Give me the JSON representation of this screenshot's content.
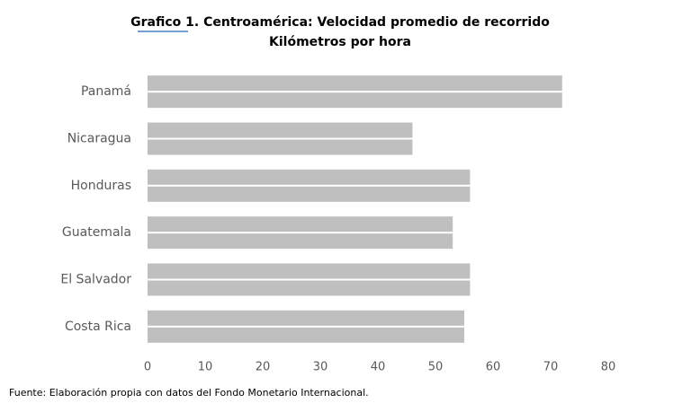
{
  "chart_data": {
    "type": "hbar",
    "title": "Grafico 1. Centroamérica: Velocidad promedio de recorrido",
    "subtitle": "Kilómetros por hora",
    "categories": [
      "Panamá",
      "Nicaragua",
      "Honduras",
      "Guatemala",
      "El Salvador",
      "Costa Rica"
    ],
    "series": [
      {
        "color": "#bfbfbf",
        "values": [
          72,
          46,
          56,
          53,
          56,
          55
        ]
      },
      {
        "color": "#bfbfbf",
        "values": [
          72,
          46,
          56,
          53,
          56,
          55
        ]
      }
    ],
    "xlim": [
      0,
      80
    ],
    "xticks": [
      0,
      10,
      20,
      30,
      40,
      50,
      60,
      70,
      80
    ],
    "grid": false,
    "source": "Fuente: Elaboración propia con datos del Fondo Monetario Internacional."
  }
}
